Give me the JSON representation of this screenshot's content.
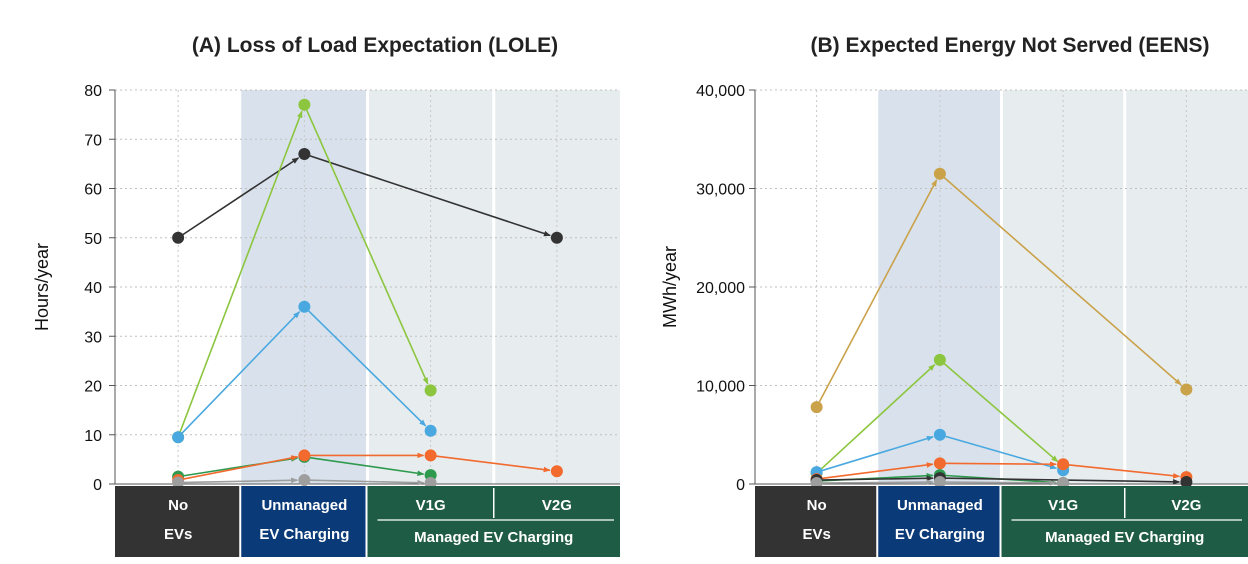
{
  "chart_data": [
    {
      "type": "line",
      "title": "(A)  Loss of Load Expectation (LOLE)",
      "ylabel": "Hours/year",
      "ylim": [
        0,
        80
      ],
      "yticks": [
        "0",
        "10",
        "20",
        "30",
        "40",
        "50",
        "60",
        "70",
        "80"
      ],
      "yticks_values": [
        0,
        10,
        20,
        30,
        40,
        50,
        60,
        70,
        80
      ],
      "categories": [
        {
          "label_line1": "No",
          "label_line2": "EVs"
        },
        {
          "label_line1": "Unmanaged",
          "label_line2": "EV Charging"
        },
        {
          "label_line1": "V1G",
          "label_line2": ""
        },
        {
          "label_line1": "V2G",
          "label_line2": ""
        }
      ],
      "group_label": "Managed EV Charging",
      "grid": true,
      "series": [
        {
          "color": "#333333",
          "points": [
            [
              0,
              50
            ],
            [
              1,
              67
            ],
            [
              3,
              50
            ]
          ]
        },
        {
          "color": "#8cc63f",
          "points": [
            [
              0,
              9.5
            ],
            [
              1,
              77
            ],
            [
              2,
              19
            ]
          ]
        },
        {
          "color": "#4aa8e0",
          "points": [
            [
              0,
              9.5
            ],
            [
              1,
              36
            ],
            [
              2,
              10.8
            ]
          ]
        },
        {
          "color": "#2e9a4e",
          "points": [
            [
              0,
              1.5
            ],
            [
              1,
              5.5
            ],
            [
              2,
              1.8
            ]
          ]
        },
        {
          "color": "#f26a2e",
          "points": [
            [
              0,
              0.8
            ],
            [
              1,
              5.8
            ],
            [
              2,
              5.8
            ],
            [
              3,
              2.6
            ]
          ]
        },
        {
          "color": "#9e9e9e",
          "points": [
            [
              0,
              0.3
            ],
            [
              1,
              0.8
            ],
            [
              2,
              0.2
            ]
          ]
        }
      ]
    },
    {
      "type": "line",
      "title": "(B)  Expected Energy Not Served (EENS)",
      "ylabel": "MWh/year",
      "ylim": [
        0,
        40000
      ],
      "yticks": [
        "0",
        "10,000",
        "20,000",
        "30,000",
        "40,000"
      ],
      "yticks_values": [
        0,
        10000,
        20000,
        30000,
        40000
      ],
      "categories": [
        {
          "label_line1": "No",
          "label_line2": "EVs"
        },
        {
          "label_line1": "Unmanaged",
          "label_line2": "EV Charging"
        },
        {
          "label_line1": "V1G",
          "label_line2": ""
        },
        {
          "label_line1": "V2G",
          "label_line2": ""
        }
      ],
      "group_label": "Managed EV Charging",
      "grid": true,
      "series": [
        {
          "color": "#c9a24a",
          "points": [
            [
              0,
              7800
            ],
            [
              1,
              31500
            ],
            [
              3,
              9600
            ]
          ]
        },
        {
          "color": "#8cc63f",
          "points": [
            [
              0,
              1100
            ],
            [
              1,
              12600
            ],
            [
              2,
              1800
            ]
          ]
        },
        {
          "color": "#4aa8e0",
          "points": [
            [
              0,
              1200
            ],
            [
              1,
              5000
            ],
            [
              2,
              1400
            ]
          ]
        },
        {
          "color": "#f26a2e",
          "points": [
            [
              0,
              500
            ],
            [
              1,
              2100
            ],
            [
              2,
              2000
            ],
            [
              3,
              700
            ]
          ]
        },
        {
          "color": "#2e9a4e",
          "points": [
            [
              0,
              300
            ],
            [
              1,
              900
            ],
            [
              2,
              100
            ]
          ]
        },
        {
          "color": "#333333",
          "points": [
            [
              0,
              400
            ],
            [
              1,
              600
            ],
            [
              3,
              200
            ]
          ]
        },
        {
          "color": "#9e9e9e",
          "points": [
            [
              0,
              100
            ],
            [
              1,
              200
            ],
            [
              2,
              100
            ]
          ]
        }
      ]
    }
  ],
  "colors": {
    "no_ev_box": "#333333",
    "unmanaged_box": "#0b3a78",
    "managed_box": "#1f5c45",
    "unmanaged_shade": "#d9e2ec",
    "managed_shade": "#e7ecef"
  }
}
